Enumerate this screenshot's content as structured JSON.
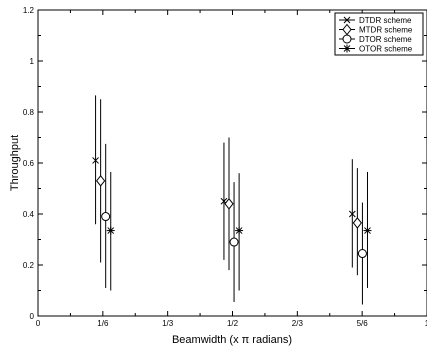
{
  "chart_data": {
    "type": "scatter",
    "title": "",
    "xlabel": "Beamwidth (x π radians)",
    "ylabel": "Throughput",
    "xlim": [
      0,
      1
    ],
    "ylim": [
      0,
      1.2
    ],
    "x_ticks": [
      {
        "value": 0,
        "label": "0"
      },
      {
        "value": 0.1667,
        "label": "1/6"
      },
      {
        "value": 0.3333,
        "label": "1/3"
      },
      {
        "value": 0.5,
        "label": "1/2"
      },
      {
        "value": 0.6667,
        "label": "2/3"
      },
      {
        "value": 0.8333,
        "label": "5/6"
      },
      {
        "value": 1,
        "label": "1"
      }
    ],
    "y_ticks": [
      {
        "value": 0,
        "label": "0"
      },
      {
        "value": 0.2,
        "label": "0.2"
      },
      {
        "value": 0.4,
        "label": "0.4"
      },
      {
        "value": 0.6,
        "label": "0.6"
      },
      {
        "value": 0.8,
        "label": "0.8"
      },
      {
        "value": 1,
        "label": "1"
      },
      {
        "value": 1.2,
        "label": "1.2"
      }
    ],
    "grid": false,
    "legend_position": "top-right",
    "series": [
      {
        "name": "DTDR scheme",
        "marker": "x",
        "points": [
          {
            "x": 0.148,
            "y": 0.61,
            "low": 0.36,
            "high": 0.865
          },
          {
            "x": 0.478,
            "y": 0.45,
            "low": 0.22,
            "high": 0.68
          },
          {
            "x": 0.808,
            "y": 0.4,
            "low": 0.19,
            "high": 0.615
          }
        ]
      },
      {
        "name": "MTDR scheme",
        "marker": "diamond",
        "points": [
          {
            "x": 0.161,
            "y": 0.53,
            "low": 0.21,
            "high": 0.85
          },
          {
            "x": 0.491,
            "y": 0.44,
            "low": 0.18,
            "high": 0.7
          },
          {
            "x": 0.821,
            "y": 0.365,
            "low": 0.16,
            "high": 0.58
          }
        ]
      },
      {
        "name": "DTOR scheme",
        "marker": "circle",
        "points": [
          {
            "x": 0.174,
            "y": 0.39,
            "low": 0.11,
            "high": 0.675
          },
          {
            "x": 0.504,
            "y": 0.29,
            "low": 0.055,
            "high": 0.525
          },
          {
            "x": 0.834,
            "y": 0.245,
            "low": 0.045,
            "high": 0.445
          }
        ]
      },
      {
        "name": "OTOR scheme",
        "marker": "star",
        "points": [
          {
            "x": 0.187,
            "y": 0.335,
            "low": 0.1,
            "high": 0.565
          },
          {
            "x": 0.517,
            "y": 0.335,
            "low": 0.1,
            "high": 0.56
          },
          {
            "x": 0.847,
            "y": 0.335,
            "low": 0.11,
            "high": 0.565
          }
        ]
      }
    ]
  }
}
